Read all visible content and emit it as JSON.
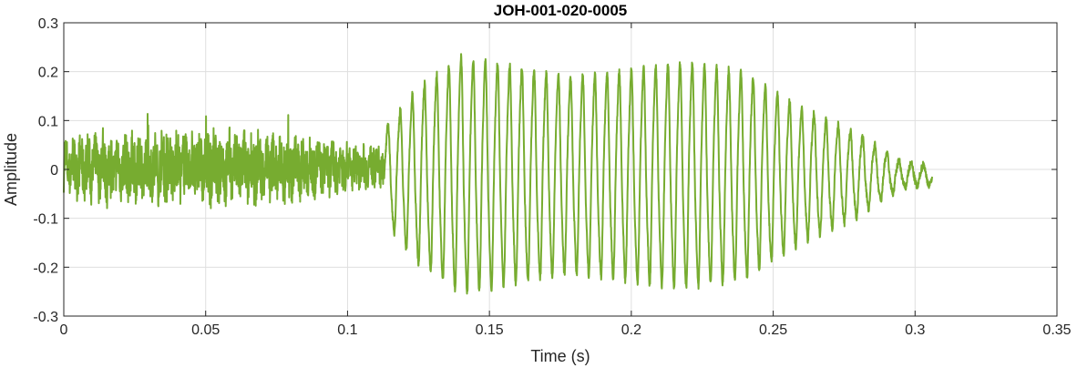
{
  "chart_data": {
    "type": "line",
    "title": "JOH-001-020-0005",
    "xlabel": "Time (s)",
    "ylabel": "Amplitude",
    "xlim": [
      0,
      0.35
    ],
    "ylim": [
      -0.3,
      0.3
    ],
    "xticks": [
      0,
      0.05,
      0.1,
      0.15,
      0.2,
      0.25,
      0.3,
      0.35
    ],
    "xtick_labels": [
      "0",
      "0.05",
      "0.1",
      "0.15",
      "0.2",
      "0.25",
      "0.3",
      "0.35"
    ],
    "yticks": [
      -0.3,
      -0.2,
      -0.1,
      0,
      0.1,
      0.2,
      0.3
    ],
    "ytick_labels": [
      "-0.3",
      "-0.2",
      "-0.1",
      "0",
      "0.1",
      "0.2",
      "0.3"
    ],
    "grid": true,
    "color": "#77AC30",
    "series": [
      {
        "segments": [
          {
            "x_range": [
              0,
              0.113
            ],
            "kind": "noise",
            "amplitude_envelope": [
              [
                0,
                0.075
              ],
              [
                0.05,
                0.09
              ],
              [
                0.07,
                0.09
              ],
              [
                0.11,
                0.05
              ]
            ]
          },
          {
            "x_range": [
              0.113,
              0.306
            ],
            "kind": "oscillation",
            "cycles": 45,
            "amplitude_envelope": [
              [
                0.113,
                0.09
              ],
              [
                0.125,
                0.17
              ],
              [
                0.14,
                0.23
              ],
              [
                0.18,
                0.19
              ],
              [
                0.22,
                0.22
              ],
              [
                0.24,
                0.2
              ],
              [
                0.26,
                0.13
              ],
              [
                0.28,
                0.08
              ],
              [
                0.295,
                0.025
              ],
              [
                0.306,
                0.02
              ]
            ]
          }
        ]
      }
    ]
  }
}
